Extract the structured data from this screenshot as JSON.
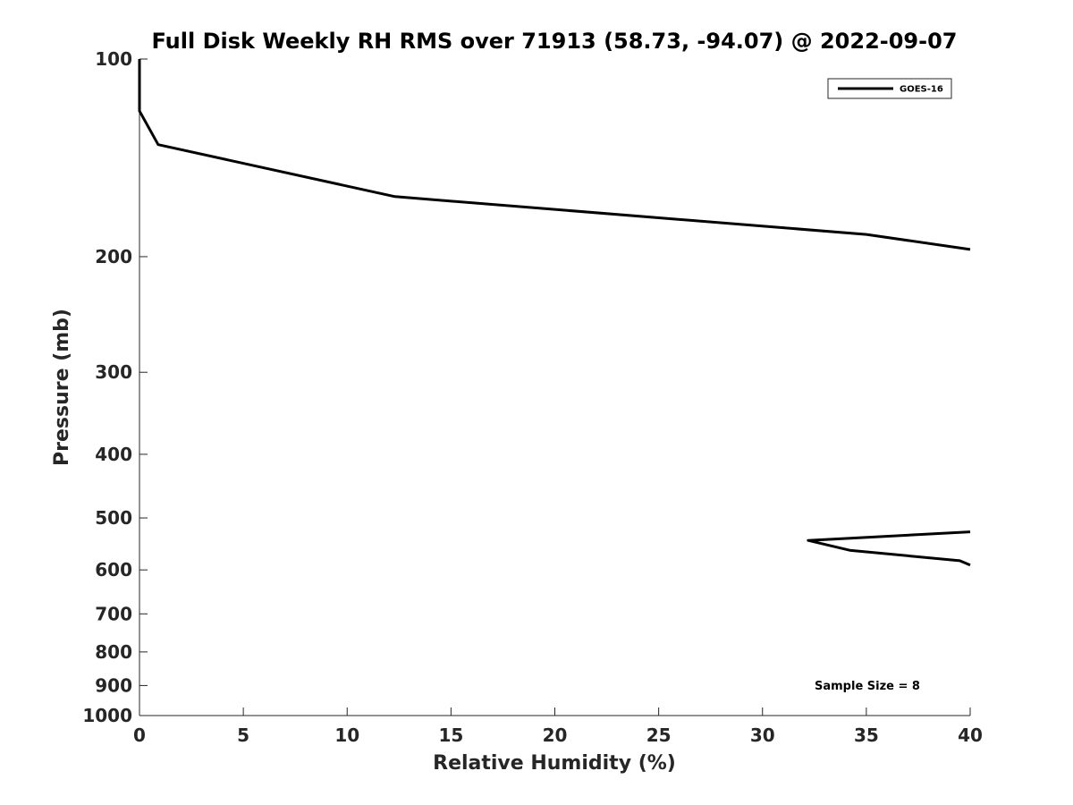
{
  "chart_data": {
    "type": "line",
    "title": "Full Disk Weekly RH RMS over 71913 (58.73, -94.07) @ 2022-09-07",
    "xlabel": "Relative Humidity (%)",
    "ylabel": "Pressure (mb)",
    "xlim": [
      0,
      40
    ],
    "ylim": [
      100,
      1000
    ],
    "yscale": "log",
    "yreversed": true,
    "grid": false,
    "legend_position": "top-right",
    "xticks": [
      0,
      5,
      10,
      15,
      20,
      25,
      30,
      35,
      40
    ],
    "yticks": [
      100,
      200,
      300,
      400,
      500,
      600,
      700,
      800,
      900,
      1000
    ],
    "series": [
      {
        "name": "GOES-16",
        "color": "#000000",
        "segments": [
          {
            "x": [
              0,
              0,
              0,
              0.9,
              12.3,
              35,
              40
            ],
            "y": [
              100,
              110,
              120,
              135,
              162,
              185,
              195
            ]
          },
          {
            "x": [
              40,
              32.2,
              34.2,
              39.5,
              40
            ],
            "y": [
              525,
              541,
              560,
              581,
              590
            ]
          }
        ]
      }
    ],
    "annotations": [
      "Sample Size = 8"
    ]
  }
}
